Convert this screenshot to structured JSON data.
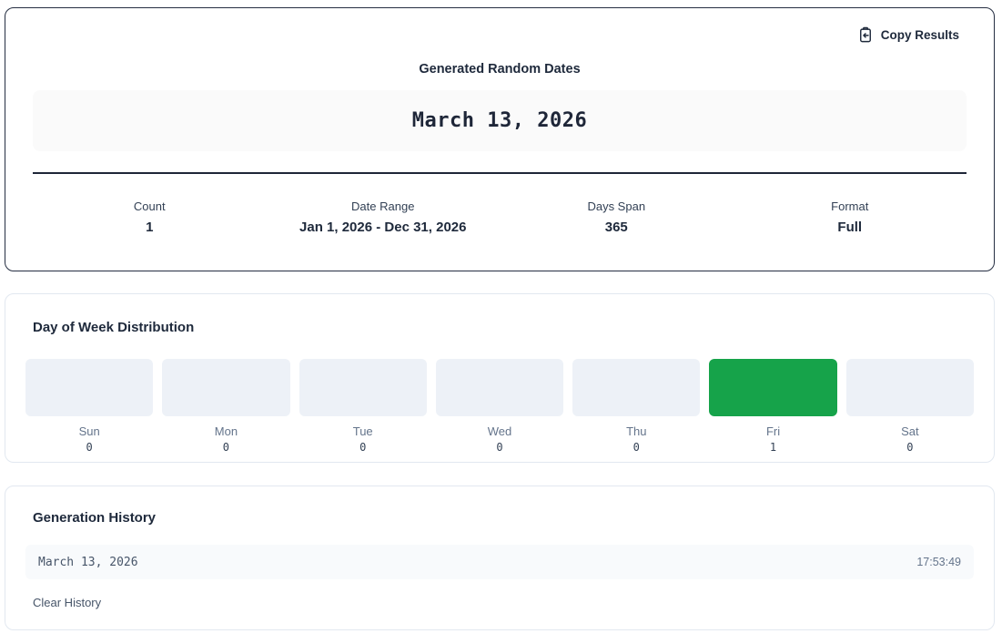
{
  "results_card": {
    "copy_button_label": "Copy Results",
    "heading": "Generated Random Dates",
    "generated_date": "March 13, 2026",
    "stats": [
      {
        "label": "Count",
        "value": "1"
      },
      {
        "label": "Date Range",
        "value": "Jan 1, 2026 - Dec 31, 2026"
      },
      {
        "label": "Days Span",
        "value": "365"
      },
      {
        "label": "Format",
        "value": "Full"
      }
    ]
  },
  "distribution_card": {
    "heading": "Day of Week Distribution",
    "chart_data": {
      "type": "bar",
      "categories": [
        "Sun",
        "Mon",
        "Tue",
        "Wed",
        "Thu",
        "Fri",
        "Sat"
      ],
      "values": [
        0,
        0,
        0,
        0,
        0,
        1,
        0
      ],
      "ylim": [
        0,
        1
      ],
      "bar_base_color": "#edf1f7",
      "bar_highlight_color": "#16a34a"
    }
  },
  "history_card": {
    "heading": "Generation History",
    "items": [
      {
        "date": "March 13, 2026",
        "time": "17:53:49"
      }
    ],
    "clear_button_label": "Clear History"
  },
  "colors": {
    "text_dark": "#1e293b",
    "text_muted": "#64748b",
    "card_dark_border": "#252e42",
    "card_light_border": "#e2e8f0",
    "date_display_bg": "#fafafa",
    "history_row_bg": "#f8fafc",
    "accent_green": "#16a34a"
  }
}
